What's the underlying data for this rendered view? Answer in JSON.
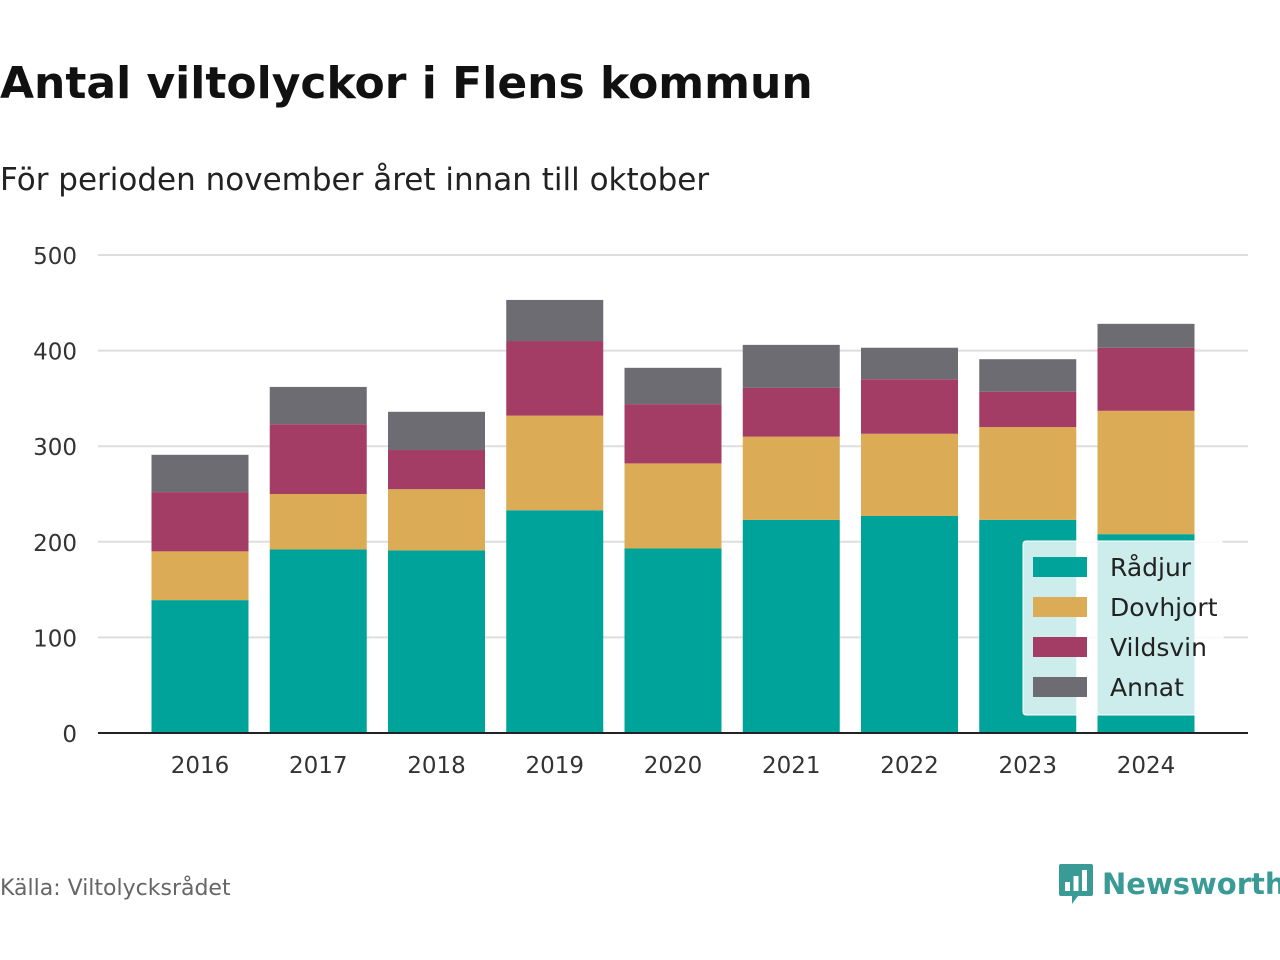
{
  "header": {
    "title": "Antal viltolyckor i Flens kommun",
    "subtitle": "För perioden november året innan till oktober"
  },
  "footer": {
    "source": "Källa: Viltolycksrådet",
    "brand": "Newsworthy",
    "brand_icon": "bar-chart-speech-bubble-icon"
  },
  "chart_data": {
    "type": "bar",
    "stacked": true,
    "categories": [
      "2016",
      "2017",
      "2018",
      "2019",
      "2020",
      "2021",
      "2022",
      "2023",
      "2024"
    ],
    "series": [
      {
        "name": "Rådjur",
        "color": "#00a39a",
        "values": [
          139,
          192,
          191,
          233,
          193,
          223,
          227,
          223,
          208
        ]
      },
      {
        "name": "Dovhjort",
        "color": "#dcab56",
        "values": [
          51,
          58,
          64,
          99,
          89,
          87,
          86,
          97,
          129
        ]
      },
      {
        "name": "Vildsvin",
        "color": "#a43d66",
        "values": [
          62,
          73,
          41,
          78,
          62,
          51,
          57,
          37,
          66
        ]
      },
      {
        "name": "Annat",
        "color": "#6d6c73",
        "values": [
          39,
          39,
          40,
          43,
          38,
          45,
          33,
          34,
          25
        ]
      }
    ],
    "yticks": [
      0,
      100,
      200,
      300,
      400,
      500
    ],
    "ylim": [
      0,
      500
    ],
    "grid": true,
    "legend_position": "bottom-right inside"
  }
}
